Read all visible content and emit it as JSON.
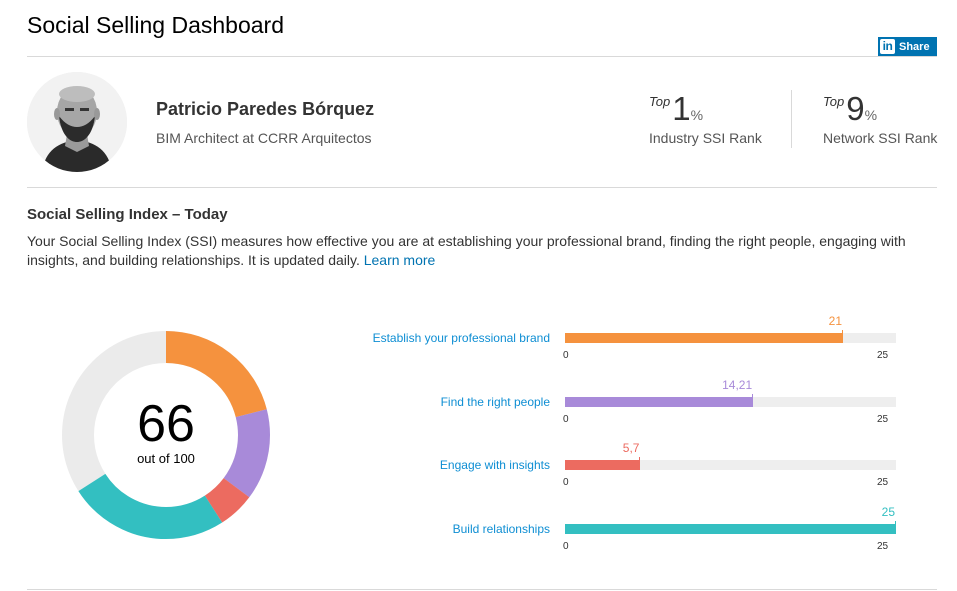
{
  "page": {
    "title": "Social Selling Dashboard"
  },
  "share": {
    "label": "Share",
    "icon": "linkedin-icon",
    "icon_text": "in"
  },
  "profile": {
    "name": "Patricio Paredes Bórquez",
    "headline": "BIM Architect at CCRR Arquitectos"
  },
  "ranks": [
    {
      "top_word": "Top",
      "value": "1",
      "unit": "%",
      "label": "Industry SSI Rank"
    },
    {
      "top_word": "Top",
      "value": "9",
      "unit": "%",
      "label": "Network SSI Rank"
    }
  ],
  "ssi": {
    "title": "Social Selling Index – Today",
    "description": "Your Social Selling Index (SSI) measures how effective you are at establishing your professional brand, finding the right people, engaging with insights, and building relationships. It is updated daily.",
    "learn_more": "Learn more",
    "score": "66",
    "score_sub": "out of 100"
  },
  "colors": {
    "brand": "#0073b1",
    "remaining": "#ebebeb",
    "track": "#eeeeee"
  },
  "chart_data": {
    "type": "bar",
    "max": 25,
    "total": 100,
    "axis_min_label": "0",
    "axis_max_label": "25",
    "series": [
      {
        "name": "Establish your professional brand",
        "value": 21,
        "display": "21",
        "color": "#f5923e"
      },
      {
        "name": "Find the right people",
        "value": 14.21,
        "display": "14,21",
        "color": "#a88ad9"
      },
      {
        "name": "Engage with insights",
        "value": 5.7,
        "display": "5,7",
        "color": "#ec6b60"
      },
      {
        "name": "Build relationships",
        "value": 25,
        "display": "25",
        "color": "#33bfc1"
      }
    ]
  }
}
